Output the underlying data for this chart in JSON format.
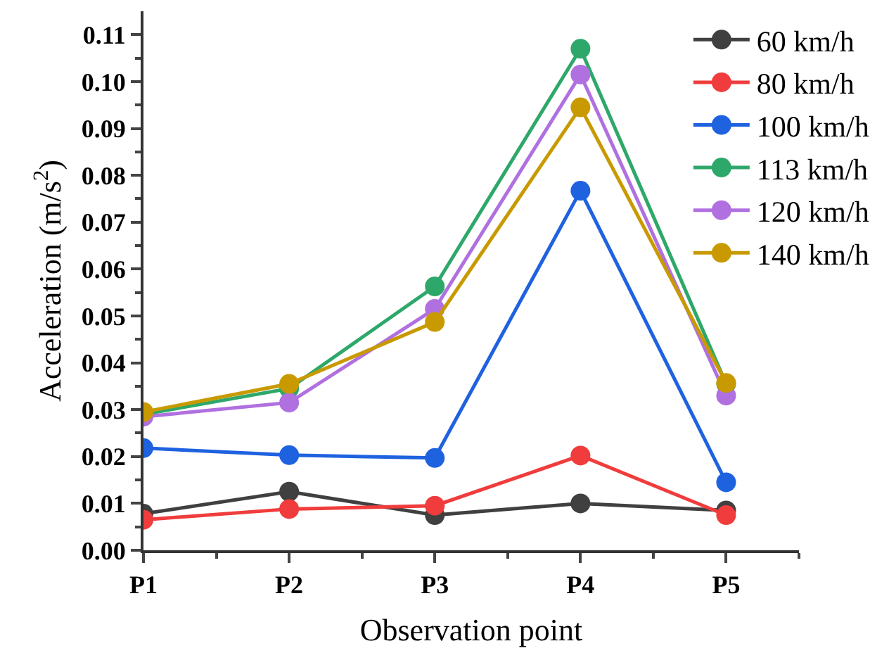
{
  "chart_data": {
    "type": "line",
    "xlabel": "Observation point",
    "ylabel": "Acceleration (m/s$^{2}$)",
    "categories": [
      "P1",
      "P2",
      "P3",
      "P4",
      "P5"
    ],
    "series": [
      {
        "name": "60 km/h",
        "color": "#404040",
        "values": [
          0.0078,
          0.0125,
          0.0075,
          0.01,
          0.0085
        ]
      },
      {
        "name": "80 km/h",
        "color": "#f03c3c",
        "values": [
          0.0065,
          0.0088,
          0.0095,
          0.0202,
          0.0075
        ]
      },
      {
        "name": "100 km/h",
        "color": "#1f62e0",
        "values": [
          0.0218,
          0.0203,
          0.0197,
          0.0767,
          0.0145
        ]
      },
      {
        "name": "113 km/h",
        "color": "#2ea86a",
        "values": [
          0.029,
          0.0345,
          0.0563,
          0.107,
          0.0355
        ]
      },
      {
        "name": "120 km/h",
        "color": "#b070e0",
        "values": [
          0.0285,
          0.0315,
          0.0515,
          0.1015,
          0.033
        ]
      },
      {
        "name": "140 km/h",
        "color": "#c89a00",
        "values": [
          0.0295,
          0.0355,
          0.0487,
          0.0945,
          0.0357
        ]
      }
    ],
    "ylim": [
      0,
      0.115
    ],
    "yticks": [
      {
        "value": 0,
        "label": "0.00"
      },
      0.01,
      0.02,
      0.03,
      0.04,
      0.05,
      0.06,
      0.07,
      0.08,
      0.09,
      {
        "value": 0.1,
        "label": "0.10"
      },
      0.11
    ],
    "legend": "top right",
    "marker": "circle",
    "line_style": "solid"
  }
}
